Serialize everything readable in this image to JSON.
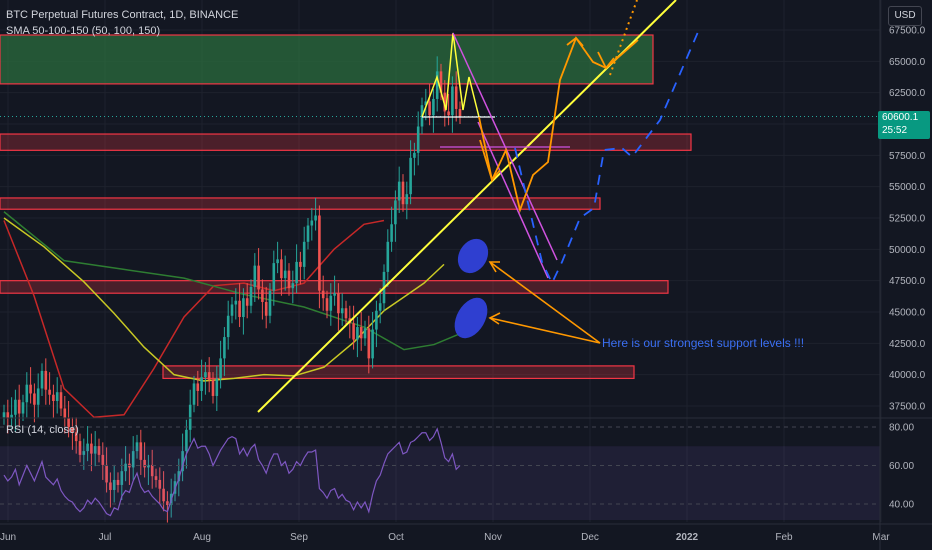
{
  "header": {
    "symbol": "BTC Perpetual Futures Contract, 1D, BINANCE",
    "indicator": "SMA 50-100-150 (50, 100, 150)",
    "rsi_label": "RSI (14, close)"
  },
  "currency_button": "USD",
  "last_price": "60600.1",
  "countdown": "25:52",
  "annotation": "Here is our strongest support levels !!!",
  "colors": {
    "background": "#131722",
    "bull": "#26a69a",
    "bear": "#ef5350",
    "trendline": "#ffff3b",
    "orange_arrows": "#ff9800",
    "magenta_channel": "#d052e0",
    "blue_path": "#2962ff",
    "support_zone": "#f23645",
    "green_zone": "#2b6c3d",
    "sma50": "#c62828",
    "sma100": "#c8c824",
    "sma150": "#2e7d32",
    "rsi_line": "#7e57c2"
  },
  "chart_data": {
    "type": "candlestick",
    "price_axis": {
      "ticks": [
        "67500.0",
        "65000.0",
        "62500.0",
        "60000.0",
        "57500.0",
        "55000.0",
        "52500.0",
        "50000.0",
        "47500.0",
        "45000.0",
        "42500.0",
        "40000.0",
        "37500.0"
      ],
      "range": [
        37000,
        68000
      ]
    },
    "rsi_axis": {
      "ticks": [
        "80.00",
        "60.00",
        "40.00"
      ],
      "range": [
        35,
        85
      ],
      "band": [
        30,
        70
      ]
    },
    "time_axis": [
      "Jun",
      "Jul",
      "Aug",
      "Sep",
      "Oct",
      "Nov",
      "Dec",
      "2022",
      "Feb",
      "Mar"
    ],
    "last_price": 60600.1,
    "support_zones": [
      [
        63200,
        67100
      ],
      [
        57900,
        59200
      ],
      [
        53200,
        54100
      ],
      [
        46500,
        47500
      ],
      [
        39700,
        40700
      ]
    ],
    "resistance_zone": [
      63200,
      67100
    ],
    "close_series": [
      37000,
      36500,
      36800,
      38000,
      36900,
      37800,
      39200,
      38500,
      37600,
      38900,
      40300,
      38800,
      38400,
      37900,
      38600,
      37300,
      36500,
      35800,
      35400,
      34700,
      33600,
      33900,
      34500,
      33700,
      34300,
      33600,
      32800,
      31400,
      30800,
      31600,
      31200,
      32300,
      32900,
      32600,
      33900,
      34600,
      33200,
      32600,
      32800,
      31900,
      31600,
      30900,
      29900,
      29600,
      30500,
      31500,
      32300,
      33900,
      35600,
      37600,
      39300,
      38700,
      39800,
      40200,
      39600,
      38300,
      39700,
      41300,
      43000,
      44700,
      45600,
      45900,
      44600,
      46100,
      45500,
      47000,
      48700,
      46800,
      45800,
      44700,
      46700,
      48900,
      49200,
      47700,
      48300,
      46900,
      47300,
      49000,
      48600,
      50600,
      51900,
      52300,
      52700,
      46700,
      46100,
      45100,
      46300,
      46500,
      44900,
      45300,
      44500,
      44100,
      42800,
      43800,
      42900,
      43700,
      41300,
      43600,
      45100,
      45700,
      48200,
      50600,
      52000,
      53900,
      55400,
      53600,
      54400,
      57300,
      57700,
      59800,
      61500,
      61800,
      60700,
      62000,
      64200,
      62500,
      61000,
      60700,
      63000,
      61200,
      60600
    ],
    "rsi_series": [
      55,
      52,
      54,
      58,
      50,
      55,
      60,
      56,
      52,
      57,
      62,
      54,
      52,
      50,
      53,
      47,
      44,
      42,
      41,
      38,
      36,
      38,
      42,
      40,
      43,
      41,
      38,
      35,
      34,
      38,
      37,
      44,
      47,
      46,
      52,
      56,
      49,
      46,
      47,
      44,
      42,
      40,
      37,
      36,
      42,
      48,
      53,
      60,
      66,
      70,
      74,
      69,
      70,
      70,
      66,
      60,
      64,
      68,
      71,
      74,
      75,
      74,
      66,
      69,
      65,
      69,
      71,
      63,
      60,
      56,
      62,
      66,
      66,
      60,
      62,
      56,
      58,
      62,
      60,
      64,
      67,
      67,
      68,
      48,
      46,
      43,
      47,
      48,
      43,
      45,
      42,
      41,
      37,
      41,
      38,
      41,
      36,
      45,
      52,
      55,
      61,
      66,
      68,
      70,
      72,
      66,
      67,
      72,
      73,
      75,
      77,
      77,
      73,
      75,
      79,
      72,
      64,
      62,
      66,
      58,
      60
    ],
    "sma50": [
      [
        0,
        52300
      ],
      [
        30,
        46300
      ],
      [
        60,
        38900
      ],
      [
        90,
        36600
      ],
      [
        120,
        36800
      ],
      [
        150,
        40500
      ],
      [
        180,
        44600
      ],
      [
        210,
        47100
      ],
      [
        240,
        47300
      ],
      [
        270,
        46700
      ],
      [
        300,
        47300
      ],
      [
        330,
        50000
      ],
      [
        360,
        52000
      ],
      [
        380,
        52300
      ]
    ],
    "sma100": [
      [
        0,
        52500
      ],
      [
        40,
        50200
      ],
      [
        80,
        47400
      ],
      [
        110,
        44900
      ],
      [
        140,
        42200
      ],
      [
        170,
        40000
      ],
      [
        200,
        39500
      ],
      [
        230,
        39700
      ],
      [
        260,
        40000
      ],
      [
        290,
        39900
      ],
      [
        320,
        40600
      ],
      [
        350,
        42600
      ],
      [
        380,
        45100
      ],
      [
        400,
        46200
      ],
      [
        420,
        47300
      ],
      [
        440,
        48800
      ]
    ],
    "sma150": [
      [
        0,
        53000
      ],
      [
        60,
        49100
      ],
      [
        120,
        48400
      ],
      [
        180,
        47700
      ],
      [
        240,
        46400
      ],
      [
        300,
        45400
      ],
      [
        360,
        43800
      ],
      [
        400,
        42000
      ],
      [
        430,
        42400
      ],
      [
        460,
        43400
      ]
    ]
  }
}
